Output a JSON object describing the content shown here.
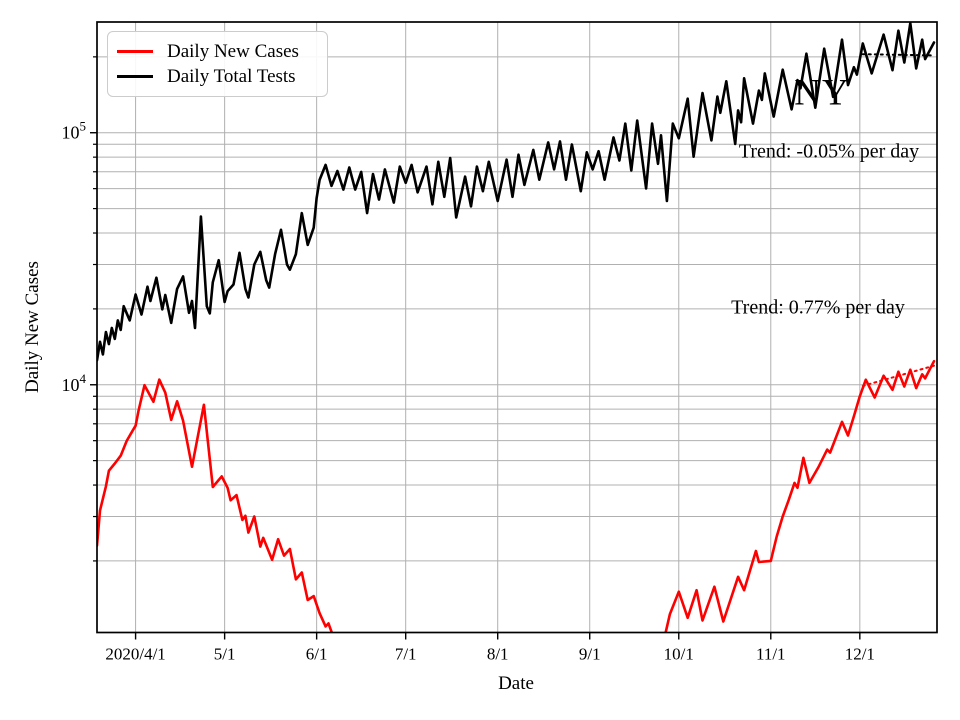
{
  "annotations": {
    "state": {
      "text": "NY"
    },
    "tests_trend": {
      "text": "Trend: -0.05% per day"
    },
    "cases_trend": {
      "text": "Trend: 0.77% per day"
    }
  },
  "chart_data": {
    "type": "line",
    "title": "",
    "xlabel": "Date",
    "ylabel": "Daily New Cases",
    "yscale": "log",
    "ylim": [
      1040,
      275000
    ],
    "xlim": [
      "3/19",
      "12/27"
    ],
    "grid": "both",
    "legend_position": "upper-left",
    "colors": {
      "cases": "#ff0000",
      "tests": "#000000",
      "grid": "#b0b0b0",
      "frame": "#000000"
    },
    "x_ticks": [
      {
        "date": "4/1",
        "label": "2020/4/1"
      },
      {
        "date": "5/1",
        "label": "5/1"
      },
      {
        "date": "6/1",
        "label": "6/1"
      },
      {
        "date": "7/1",
        "label": "7/1"
      },
      {
        "date": "8/1",
        "label": "8/1"
      },
      {
        "date": "9/1",
        "label": "9/1"
      },
      {
        "date": "10/1",
        "label": "10/1"
      },
      {
        "date": "11/1",
        "label": "11/1"
      },
      {
        "date": "12/1",
        "label": "12/1"
      }
    ],
    "y_ticks": [
      {
        "value": 10000,
        "label": "10^4"
      },
      {
        "value": 100000,
        "label": "10^5"
      }
    ],
    "series": [
      {
        "name": "Daily New Cases",
        "color": "#ff0000",
        "style": "solid",
        "in_legend": true,
        "segments": [
          [
            [
              "3/19",
              2300
            ],
            [
              "3/20",
              3170
            ],
            [
              "3/22",
              3950
            ],
            [
              "3/23",
              4560
            ],
            [
              "3/25",
              4870
            ],
            [
              "3/27",
              5230
            ],
            [
              "3/29",
              5990
            ],
            [
              "3/31",
              6570
            ],
            [
              "4/1",
              6880
            ],
            [
              "4/2",
              7910
            ],
            [
              "4/4",
              9960
            ],
            [
              "4/7",
              8560
            ],
            [
              "4/9",
              10480
            ],
            [
              "4/11",
              9300
            ],
            [
              "4/13",
              7260
            ],
            [
              "4/15",
              8600
            ],
            [
              "4/17",
              7200
            ],
            [
              "4/20",
              4730
            ],
            [
              "4/24",
              8330
            ],
            [
              "4/27",
              3930
            ],
            [
              "4/30",
              4330
            ],
            [
              "5/2",
              3900
            ],
            [
              "5/3",
              3480
            ],
            [
              "5/5",
              3650
            ],
            [
              "5/7",
              2910
            ],
            [
              "5/8",
              3020
            ],
            [
              "5/9",
              2590
            ],
            [
              "5/11",
              3000
            ],
            [
              "5/13",
              2280
            ],
            [
              "5/14",
              2470
            ],
            [
              "5/17",
              2020
            ],
            [
              "5/19",
              2440
            ],
            [
              "5/21",
              2100
            ],
            [
              "5/23",
              2230
            ],
            [
              "5/25",
              1690
            ],
            [
              "5/27",
              1800
            ],
            [
              "5/29",
              1400
            ],
            [
              "5/31",
              1450
            ],
            [
              "6/2",
              1240
            ],
            [
              "6/4",
              1100
            ],
            [
              "6/5",
              1130
            ],
            [
              "6/7",
              970
            ]
          ],
          [
            [
              "9/26",
              970
            ],
            [
              "9/28",
              1230
            ],
            [
              "10/1",
              1510
            ],
            [
              "10/4",
              1190
            ],
            [
              "10/7",
              1530
            ],
            [
              "10/9",
              1160
            ],
            [
              "10/13",
              1580
            ],
            [
              "10/16",
              1150
            ],
            [
              "10/21",
              1730
            ],
            [
              "10/23",
              1530
            ],
            [
              "10/27",
              2190
            ],
            [
              "10/28",
              1980
            ],
            [
              "11/1",
              2000
            ],
            [
              "11/3",
              2500
            ],
            [
              "11/5",
              3000
            ],
            [
              "11/7",
              3480
            ],
            [
              "11/9",
              4080
            ],
            [
              "11/10",
              3900
            ],
            [
              "11/12",
              5130
            ],
            [
              "11/14",
              4080
            ],
            [
              "11/17",
              4700
            ],
            [
              "11/20",
              5530
            ],
            [
              "11/21",
              5380
            ],
            [
              "11/25",
              7130
            ],
            [
              "11/27",
              6290
            ],
            [
              "11/29",
              7500
            ],
            [
              "12/1",
              9000
            ],
            [
              "12/3",
              10470
            ],
            [
              "12/6",
              8900
            ],
            [
              "12/9",
              10860
            ],
            [
              "12/12",
              9550
            ],
            [
              "12/14",
              11270
            ],
            [
              "12/16",
              9840
            ],
            [
              "12/18",
              11480
            ],
            [
              "12/20",
              9700
            ],
            [
              "12/22",
              11000
            ],
            [
              "12/23",
              10600
            ],
            [
              "12/26",
              12400
            ]
          ]
        ]
      },
      {
        "name": "Daily Total Tests",
        "color": "#000000",
        "style": "solid",
        "in_legend": true,
        "segments": [
          [
            [
              "3/19",
              12500
            ],
            [
              "3/20",
              14800
            ],
            [
              "3/21",
              13200
            ],
            [
              "3/22",
              16200
            ],
            [
              "3/23",
              14500
            ],
            [
              "3/24",
              16800
            ],
            [
              "3/25",
              15200
            ],
            [
              "3/26",
              18000
            ],
            [
              "3/27",
              16500
            ],
            [
              "3/28",
              20500
            ],
            [
              "3/30",
              18000
            ],
            [
              "4/1",
              22800
            ],
            [
              "4/3",
              19000
            ],
            [
              "4/5",
              24500
            ],
            [
              "4/6",
              21500
            ],
            [
              "4/8",
              26600
            ],
            [
              "4/10",
              19900
            ],
            [
              "4/11",
              22700
            ],
            [
              "4/13",
              17600
            ],
            [
              "4/15",
              24000
            ],
            [
              "4/17",
              26900
            ],
            [
              "4/19",
              19300
            ],
            [
              "4/20",
              21500
            ],
            [
              "4/21",
              16800
            ],
            [
              "4/23",
              46500
            ],
            [
              "4/25",
              20500
            ],
            [
              "4/26",
              19200
            ],
            [
              "4/27",
              25500
            ],
            [
              "4/29",
              31200
            ],
            [
              "5/1",
              21300
            ],
            [
              "5/2",
              23500
            ],
            [
              "5/4",
              25000
            ],
            [
              "5/6",
              33400
            ],
            [
              "5/8",
              24000
            ],
            [
              "5/9",
              22200
            ],
            [
              "5/11",
              30000
            ],
            [
              "5/13",
              33700
            ],
            [
              "5/15",
              26000
            ],
            [
              "5/16",
              24300
            ],
            [
              "5/18",
              33000
            ],
            [
              "5/20",
              41200
            ],
            [
              "5/22",
              30000
            ],
            [
              "5/23",
              28600
            ],
            [
              "5/25",
              33000
            ],
            [
              "5/27",
              48000
            ],
            [
              "5/29",
              35900
            ],
            [
              "5/31",
              42000
            ],
            [
              "6/1",
              55000
            ],
            [
              "6/2",
              65000
            ],
            [
              "6/4",
              74500
            ],
            [
              "6/6",
              61500
            ],
            [
              "6/8",
              70500
            ],
            [
              "6/10",
              59500
            ],
            [
              "6/12",
              72800
            ],
            [
              "6/14",
              59500
            ],
            [
              "6/16",
              69900
            ],
            [
              "6/18",
              48000
            ],
            [
              "6/20",
              68600
            ],
            [
              "6/22",
              54300
            ],
            [
              "6/24",
              71500
            ],
            [
              "6/27",
              52800
            ],
            [
              "6/29",
              73400
            ],
            [
              "7/1",
              63300
            ],
            [
              "7/3",
              74500
            ],
            [
              "7/5",
              58000
            ],
            [
              "7/8",
              73400
            ],
            [
              "7/10",
              52000
            ],
            [
              "7/12",
              76700
            ],
            [
              "7/14",
              55700
            ],
            [
              "7/16",
              79400
            ],
            [
              "7/18",
              46100
            ],
            [
              "7/21",
              67000
            ],
            [
              "7/23",
              51000
            ],
            [
              "7/25",
              73400
            ],
            [
              "7/27",
              58600
            ],
            [
              "7/29",
              76700
            ],
            [
              "8/1",
              53600
            ],
            [
              "8/4",
              78200
            ],
            [
              "8/6",
              55700
            ],
            [
              "8/8",
              81800
            ],
            [
              "8/10",
              62100
            ],
            [
              "8/13",
              85500
            ],
            [
              "8/15",
              65100
            ],
            [
              "8/18",
              91500
            ],
            [
              "8/20",
              71500
            ],
            [
              "8/22",
              92400
            ],
            [
              "8/24",
              65100
            ],
            [
              "8/26",
              89800
            ],
            [
              "8/29",
              58600
            ],
            [
              "8/31",
              83600
            ],
            [
              "9/2",
              71500
            ],
            [
              "9/4",
              84500
            ],
            [
              "9/6",
              65100
            ],
            [
              "9/9",
              95800
            ],
            [
              "9/11",
              77600
            ],
            [
              "9/13",
              108700
            ],
            [
              "9/15",
              70800
            ],
            [
              "9/17",
              111700
            ],
            [
              "9/20",
              60100
            ],
            [
              "9/22",
              108700
            ],
            [
              "9/24",
              75300
            ],
            [
              "9/25",
              97700
            ],
            [
              "9/27",
              53600
            ],
            [
              "9/29",
              108700
            ],
            [
              "10/1",
              95000
            ],
            [
              "10/4",
              136500
            ],
            [
              "10/6",
              80300
            ],
            [
              "10/9",
              143700
            ],
            [
              "10/12",
              93200
            ],
            [
              "10/14",
              139100
            ],
            [
              "10/15",
              120000
            ],
            [
              "10/17",
              160000
            ],
            [
              "10/20",
              90200
            ],
            [
              "10/21",
              122600
            ],
            [
              "10/22",
              110000
            ],
            [
              "10/23",
              164400
            ],
            [
              "10/26",
              108700
            ],
            [
              "10/28",
              147000
            ],
            [
              "10/29",
              135000
            ],
            [
              "10/30",
              172000
            ],
            [
              "11/2",
              115900
            ],
            [
              "11/5",
              177800
            ],
            [
              "11/8",
              123800
            ],
            [
              "11/10",
              161800
            ],
            [
              "11/11",
              150000
            ],
            [
              "11/13",
              205800
            ],
            [
              "11/16",
              125700
            ],
            [
              "11/19",
              215500
            ],
            [
              "11/22",
              138700
            ],
            [
              "11/25",
              234000
            ],
            [
              "11/27",
              154500
            ],
            [
              "11/29",
              182000
            ],
            [
              "11/30",
              170000
            ],
            [
              "12/2",
              226000
            ],
            [
              "12/5",
              172000
            ],
            [
              "12/9",
              245000
            ],
            [
              "12/12",
              177000
            ],
            [
              "12/14",
              254000
            ],
            [
              "12/16",
              190000
            ],
            [
              "12/18",
              272000
            ],
            [
              "12/20",
              180000
            ],
            [
              "12/22",
              234000
            ],
            [
              "12/23",
              196000
            ],
            [
              "12/26",
              228000
            ]
          ]
        ]
      },
      {
        "name": "Cases trend 0.77% per day",
        "color": "#ff0000",
        "style": "dotted",
        "in_legend": false,
        "segments": [
          [
            [
              "12/2",
              9900
            ],
            [
              "12/26",
              11900
            ]
          ]
        ]
      },
      {
        "name": "Tests trend -0.05% per day",
        "color": "#000000",
        "style": "dotted",
        "in_legend": false,
        "segments": [
          [
            [
              "12/2",
              205000
            ],
            [
              "12/26",
              202600
            ]
          ]
        ]
      }
    ]
  }
}
